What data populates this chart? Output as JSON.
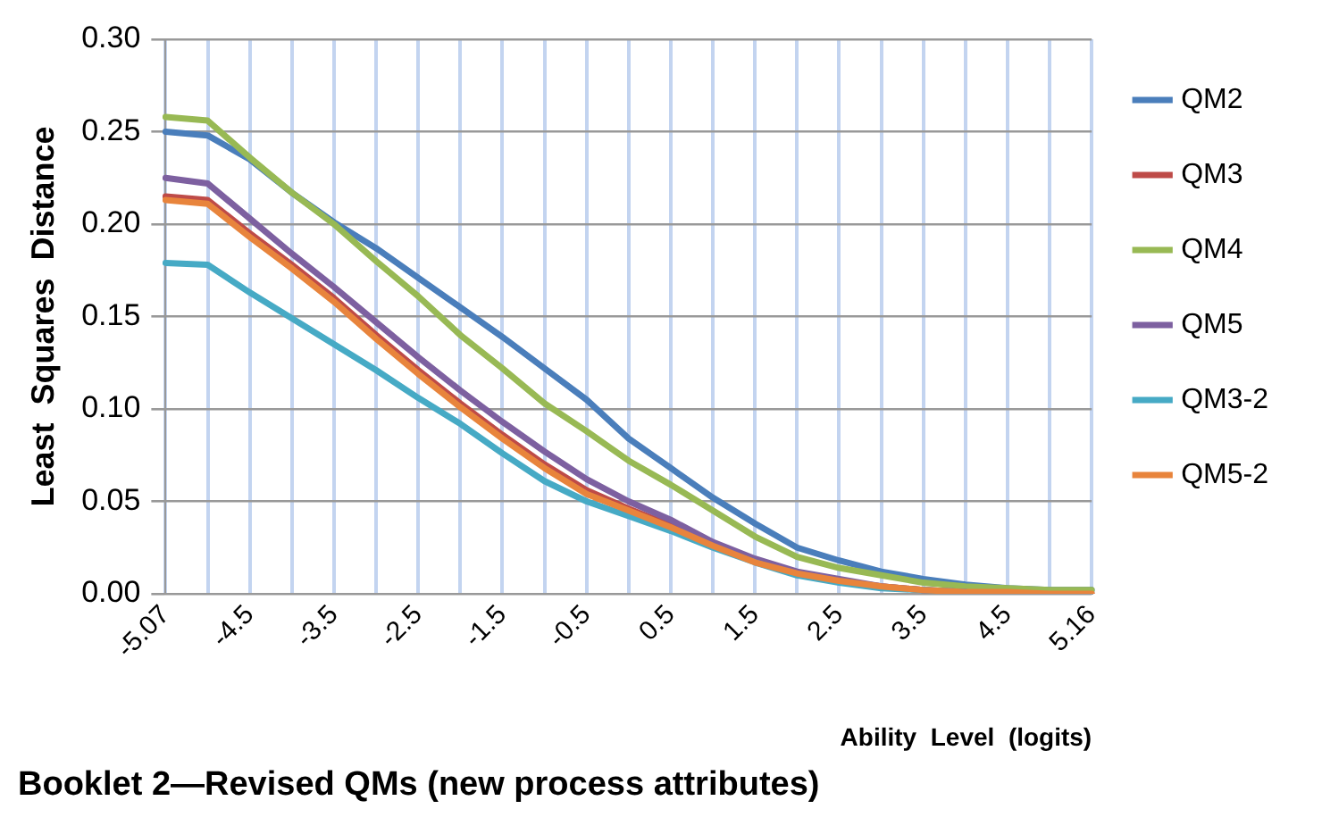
{
  "chart_data": {
    "type": "line",
    "title": "Booklet 2—Revised QMs (new process attributes)",
    "xlabel": "Ability  Level  (logits)",
    "ylabel": "Least  Squares  Distance",
    "categories": [
      "-5.07",
      null,
      "-4.5",
      null,
      "-3.5",
      null,
      "-2.5",
      null,
      "-1.5",
      null,
      "-0.5",
      null,
      "0.5",
      null,
      "1.5",
      null,
      "2.5",
      null,
      "3.5",
      null,
      "4.5",
      null,
      "5.16"
    ],
    "series": [
      {
        "name": "QM2",
        "color": "#4a7ebb",
        "values": [
          0.25,
          0.248,
          0.235,
          0.217,
          0.201,
          0.187,
          0.171,
          0.155,
          0.139,
          0.122,
          0.105,
          0.084,
          0.068,
          0.052,
          0.038,
          0.025,
          0.018,
          0.012,
          0.008,
          0.005,
          0.003,
          0.002,
          0.002
        ]
      },
      {
        "name": "QM3",
        "color": "#be4b48",
        "values": [
          0.215,
          0.213,
          0.195,
          0.178,
          0.16,
          0.14,
          0.121,
          0.103,
          0.086,
          0.07,
          0.056,
          0.046,
          0.037,
          0.026,
          0.018,
          0.011,
          0.007,
          0.004,
          0.002,
          0.001,
          0.001,
          0.0,
          0.0
        ]
      },
      {
        "name": "QM4",
        "color": "#98b954",
        "values": [
          0.258,
          0.256,
          0.236,
          0.217,
          0.2,
          0.18,
          0.161,
          0.14,
          0.122,
          0.103,
          0.088,
          0.072,
          0.059,
          0.045,
          0.031,
          0.02,
          0.014,
          0.01,
          0.006,
          0.004,
          0.003,
          0.002,
          0.002
        ]
      },
      {
        "name": "QM5",
        "color": "#7d60a0",
        "values": [
          0.225,
          0.222,
          0.203,
          0.184,
          0.166,
          0.147,
          0.128,
          0.11,
          0.093,
          0.077,
          0.062,
          0.05,
          0.04,
          0.028,
          0.019,
          0.012,
          0.008,
          0.004,
          0.002,
          0.001,
          null,
          null,
          null
        ]
      },
      {
        "name": "QM3-2",
        "color": "#46aac5",
        "values": [
          0.179,
          0.178,
          0.163,
          0.149,
          0.135,
          0.121,
          0.106,
          0.092,
          0.076,
          0.061,
          0.05,
          0.042,
          0.034,
          0.025,
          0.017,
          0.01,
          0.006,
          0.003,
          0.002,
          0.001,
          null,
          null,
          null
        ]
      },
      {
        "name": "QM5-2",
        "color": "#e8843c",
        "values": [
          0.213,
          0.211,
          0.193,
          0.176,
          0.158,
          0.138,
          0.119,
          0.101,
          0.084,
          0.068,
          0.054,
          0.045,
          0.036,
          0.026,
          0.017,
          0.011,
          0.007,
          0.004,
          0.002,
          0.001,
          0.001,
          0.0,
          0.0
        ]
      }
    ],
    "ylim": [
      0,
      0.3
    ],
    "yticks": [
      {
        "value": 0,
        "label": "0.00"
      },
      {
        "value": 0.05,
        "label": "0.05"
      },
      {
        "value": 0.1,
        "label": "0.10"
      },
      {
        "value": 0.15,
        "label": "0.15"
      },
      {
        "value": 0.2,
        "label": "0.20"
      },
      {
        "value": 0.25,
        "label": "0.25"
      },
      {
        "value": 0.3,
        "label": "0.30"
      }
    ],
    "grid": true,
    "legend": "right",
    "marker": "none",
    "line_style": "solid"
  }
}
